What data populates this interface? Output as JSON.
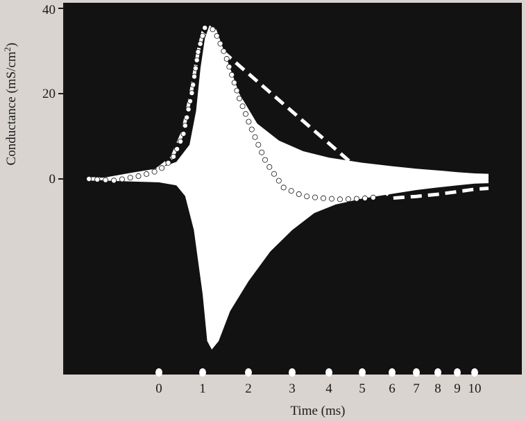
{
  "chart_data": {
    "type": "line",
    "title": "",
    "ylabel": "Conductance (mS/cm",
    "ylabel_sup": "2",
    "ylabel_close": ")",
    "xlabel": "Time (ms)",
    "ylim": [
      -40,
      40
    ],
    "yticks": [
      {
        "value": 40,
        "label": "40"
      },
      {
        "value": 20,
        "label": "20"
      },
      {
        "value": 0,
        "label": "0"
      }
    ],
    "xticks": [
      {
        "value": 0,
        "label": "0"
      },
      {
        "value": 1,
        "label": "1"
      },
      {
        "value": 2,
        "label": "2"
      },
      {
        "value": 3,
        "label": "3"
      },
      {
        "value": 4,
        "label": "4"
      },
      {
        "value": 5,
        "label": "5"
      },
      {
        "value": 6,
        "label": "6"
      },
      {
        "value": 7,
        "label": "7"
      },
      {
        "value": 8,
        "label": "8"
      },
      {
        "value": 9,
        "label": "9"
      },
      {
        "value": 10,
        "label": "10"
      }
    ],
    "background_color": "#121212",
    "trace_color": "#ffffff",
    "series": [
      {
        "style": "white-band-upper",
        "points": [
          [
            -1.6,
            0
          ],
          [
            -1.2,
            0.4
          ],
          [
            -0.6,
            1.5
          ],
          [
            0,
            2.5
          ],
          [
            0.4,
            4
          ],
          [
            0.7,
            8
          ],
          [
            0.85,
            16
          ],
          [
            0.95,
            26
          ],
          [
            1.05,
            33
          ],
          [
            1.15,
            36
          ],
          [
            1.3,
            35
          ],
          [
            1.5,
            29
          ],
          [
            1.8,
            20
          ],
          [
            2.2,
            13
          ],
          [
            2.7,
            9
          ],
          [
            3.3,
            6.5
          ],
          [
            4,
            5
          ],
          [
            5,
            3.8
          ],
          [
            6,
            3
          ],
          [
            7,
            2.4
          ],
          [
            8,
            2
          ],
          [
            9,
            1.6
          ],
          [
            10,
            1.3
          ],
          [
            10.8,
            1.2
          ]
        ]
      },
      {
        "style": "white-band-lower",
        "points": [
          [
            -1.6,
            0
          ],
          [
            -1.2,
            -0.4
          ],
          [
            -0.6,
            -0.6
          ],
          [
            0,
            -0.8
          ],
          [
            0.4,
            -1.5
          ],
          [
            0.6,
            -4
          ],
          [
            0.8,
            -12
          ],
          [
            1.0,
            -27
          ],
          [
            1.1,
            -38
          ],
          [
            1.2,
            -40
          ],
          [
            1.35,
            -38
          ],
          [
            1.6,
            -31
          ],
          [
            2.0,
            -24
          ],
          [
            2.5,
            -17
          ],
          [
            3.0,
            -12
          ],
          [
            3.6,
            -8
          ],
          [
            4.2,
            -6
          ],
          [
            5,
            -4.6
          ],
          [
            6,
            -3.5
          ],
          [
            7,
            -2.6
          ],
          [
            8,
            -2
          ],
          [
            9,
            -1.5
          ],
          [
            10,
            -1.1
          ],
          [
            10.8,
            -1.0
          ]
        ]
      },
      {
        "style": "dotted",
        "points": [
          [
            -1.6,
            0
          ],
          [
            -1.0,
            -0.4
          ],
          [
            -0.4,
            0.8
          ],
          [
            0,
            2
          ],
          [
            0.3,
            4.5
          ],
          [
            0.55,
            10
          ],
          [
            0.75,
            20
          ],
          [
            0.9,
            30
          ],
          [
            1.05,
            35.5
          ],
          [
            1.25,
            35
          ],
          [
            1.5,
            29
          ],
          [
            1.8,
            19
          ],
          [
            2.1,
            11
          ],
          [
            2.4,
            4
          ],
          [
            2.8,
            -2
          ],
          [
            3.3,
            -4
          ],
          [
            3.8,
            -4.5
          ],
          [
            4.4,
            -4.8
          ],
          [
            5,
            -4.6
          ],
          [
            5.6,
            -4.2
          ]
        ]
      },
      {
        "style": "dashed",
        "points": [
          [
            -1.6,
            0
          ],
          [
            -1.0,
            0
          ],
          [
            -0.4,
            1
          ],
          [
            0,
            2.5
          ],
          [
            0.3,
            5
          ],
          [
            0.55,
            11
          ],
          [
            0.75,
            21
          ],
          [
            0.9,
            30
          ],
          [
            1.0,
            34
          ],
          [
            6,
            -4.5
          ],
          [
            7,
            -4.1
          ],
          [
            8,
            -3.6
          ],
          [
            9,
            -3.0
          ],
          [
            10,
            -2.4
          ],
          [
            10.8,
            -2.2
          ]
        ]
      }
    ]
  }
}
